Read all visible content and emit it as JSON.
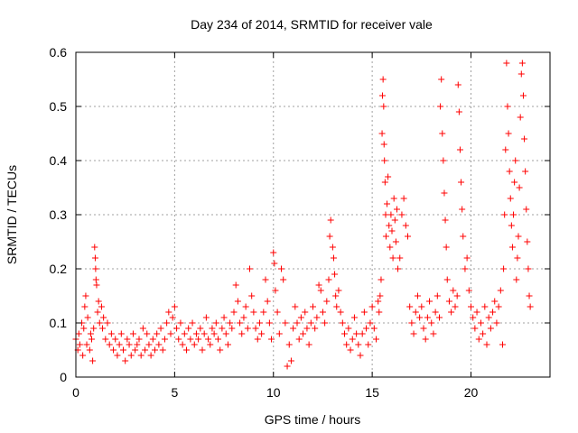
{
  "chart_data": {
    "type": "scatter",
    "title": "Day 234 of 2014, SRMTID for receiver vale",
    "xlabel": "GPS time / hours",
    "ylabel": "SRMTID / TECUs",
    "xlim": [
      0,
      24
    ],
    "ylim": [
      0,
      0.6
    ],
    "xticks": [
      0,
      5,
      10,
      15,
      20
    ],
    "xtick_labels": [
      "0",
      "5",
      "10",
      "15",
      "20"
    ],
    "yticks": [
      0,
      0.1,
      0.2,
      0.3,
      0.4,
      0.5,
      0.6
    ],
    "ytick_labels": [
      "0",
      "0.1",
      "0.2",
      "0.3",
      "0.4",
      "0.5",
      "0.6"
    ],
    "grid": true,
    "marker": "+",
    "color": "#ff0000",
    "series": [
      {
        "name": "SRMTID",
        "points": [
          [
            0.0,
            0.07
          ],
          [
            0.1,
            0.05
          ],
          [
            0.15,
            0.08
          ],
          [
            0.2,
            0.06
          ],
          [
            0.3,
            0.1
          ],
          [
            0.35,
            0.04
          ],
          [
            0.4,
            0.09
          ],
          [
            0.45,
            0.13
          ],
          [
            0.5,
            0.15
          ],
          [
            0.55,
            0.06
          ],
          [
            0.6,
            0.11
          ],
          [
            0.7,
            0.05
          ],
          [
            0.75,
            0.08
          ],
          [
            0.8,
            0.07
          ],
          [
            0.85,
            0.03
          ],
          [
            0.9,
            0.09
          ],
          [
            0.95,
            0.24
          ],
          [
            0.98,
            0.22
          ],
          [
            1.0,
            0.2
          ],
          [
            1.02,
            0.18
          ],
          [
            1.05,
            0.17
          ],
          [
            1.1,
            0.12
          ],
          [
            1.15,
            0.14
          ],
          [
            1.2,
            0.1
          ],
          [
            1.3,
            0.13
          ],
          [
            1.35,
            0.09
          ],
          [
            1.4,
            0.11
          ],
          [
            1.5,
            0.07
          ],
          [
            1.6,
            0.1
          ],
          [
            1.7,
            0.06
          ],
          [
            1.8,
            0.08
          ],
          [
            1.9,
            0.05
          ],
          [
            2.0,
            0.07
          ],
          [
            2.1,
            0.04
          ],
          [
            2.2,
            0.06
          ],
          [
            2.3,
            0.08
          ],
          [
            2.4,
            0.05
          ],
          [
            2.5,
            0.03
          ],
          [
            2.6,
            0.07
          ],
          [
            2.7,
            0.06
          ],
          [
            2.8,
            0.04
          ],
          [
            2.9,
            0.08
          ],
          [
            3.0,
            0.05
          ],
          [
            3.1,
            0.06
          ],
          [
            3.2,
            0.07
          ],
          [
            3.3,
            0.04
          ],
          [
            3.4,
            0.09
          ],
          [
            3.5,
            0.05
          ],
          [
            3.6,
            0.08
          ],
          [
            3.7,
            0.06
          ],
          [
            3.8,
            0.04
          ],
          [
            3.9,
            0.07
          ],
          [
            4.0,
            0.05
          ],
          [
            4.1,
            0.08
          ],
          [
            4.2,
            0.06
          ],
          [
            4.3,
            0.09
          ],
          [
            4.4,
            0.05
          ],
          [
            4.5,
            0.07
          ],
          [
            4.6,
            0.1
          ],
          [
            4.7,
            0.12
          ],
          [
            4.8,
            0.08
          ],
          [
            4.9,
            0.11
          ],
          [
            5.0,
            0.13
          ],
          [
            5.1,
            0.09
          ],
          [
            5.2,
            0.07
          ],
          [
            5.3,
            0.1
          ],
          [
            5.4,
            0.06
          ],
          [
            5.5,
            0.08
          ],
          [
            5.6,
            0.05
          ],
          [
            5.7,
            0.09
          ],
          [
            5.8,
            0.07
          ],
          [
            5.9,
            0.1
          ],
          [
            6.0,
            0.06
          ],
          [
            6.1,
            0.08
          ],
          [
            6.2,
            0.07
          ],
          [
            6.3,
            0.09
          ],
          [
            6.4,
            0.05
          ],
          [
            6.5,
            0.08
          ],
          [
            6.6,
            0.11
          ],
          [
            6.7,
            0.07
          ],
          [
            6.8,
            0.06
          ],
          [
            6.9,
            0.09
          ],
          [
            7.0,
            0.08
          ],
          [
            7.1,
            0.1
          ],
          [
            7.2,
            0.07
          ],
          [
            7.3,
            0.05
          ],
          [
            7.4,
            0.09
          ],
          [
            7.5,
            0.11
          ],
          [
            7.6,
            0.08
          ],
          [
            7.7,
            0.06
          ],
          [
            7.8,
            0.1
          ],
          [
            7.9,
            0.09
          ],
          [
            8.0,
            0.12
          ],
          [
            8.1,
            0.17
          ],
          [
            8.2,
            0.14
          ],
          [
            8.3,
            0.1
          ],
          [
            8.4,
            0.08
          ],
          [
            8.5,
            0.11
          ],
          [
            8.6,
            0.13
          ],
          [
            8.7,
            0.09
          ],
          [
            8.8,
            0.2
          ],
          [
            8.9,
            0.15
          ],
          [
            9.0,
            0.12
          ],
          [
            9.1,
            0.09
          ],
          [
            9.2,
            0.07
          ],
          [
            9.3,
            0.1
          ],
          [
            9.4,
            0.08
          ],
          [
            9.5,
            0.12
          ],
          [
            9.6,
            0.18
          ],
          [
            9.7,
            0.14
          ],
          [
            9.8,
            0.1
          ],
          [
            9.9,
            0.07
          ],
          [
            10.0,
            0.23
          ],
          [
            10.05,
            0.21
          ],
          [
            10.1,
            0.16
          ],
          [
            10.2,
            0.12
          ],
          [
            10.3,
            0.08
          ],
          [
            10.4,
            0.2
          ],
          [
            10.5,
            0.18
          ],
          [
            10.6,
            0.1
          ],
          [
            10.7,
            0.02
          ],
          [
            10.8,
            0.06
          ],
          [
            10.9,
            0.03
          ],
          [
            11.0,
            0.09
          ],
          [
            11.1,
            0.13
          ],
          [
            11.2,
            0.1
          ],
          [
            11.3,
            0.07
          ],
          [
            11.4,
            0.11
          ],
          [
            11.5,
            0.08
          ],
          [
            11.6,
            0.12
          ],
          [
            11.7,
            0.09
          ],
          [
            11.8,
            0.06
          ],
          [
            11.9,
            0.1
          ],
          [
            12.0,
            0.13
          ],
          [
            12.1,
            0.09
          ],
          [
            12.2,
            0.11
          ],
          [
            12.3,
            0.17
          ],
          [
            12.4,
            0.16
          ],
          [
            12.5,
            0.12
          ],
          [
            12.6,
            0.1
          ],
          [
            12.7,
            0.14
          ],
          [
            12.8,
            0.18
          ],
          [
            12.85,
            0.26
          ],
          [
            12.9,
            0.29
          ],
          [
            13.0,
            0.24
          ],
          [
            13.05,
            0.22
          ],
          [
            13.1,
            0.19
          ],
          [
            13.15,
            0.15
          ],
          [
            13.2,
            0.13
          ],
          [
            13.3,
            0.16
          ],
          [
            13.4,
            0.12
          ],
          [
            13.5,
            0.1
          ],
          [
            13.6,
            0.08
          ],
          [
            13.7,
            0.06
          ],
          [
            13.8,
            0.09
          ],
          [
            13.9,
            0.05
          ],
          [
            14.0,
            0.07
          ],
          [
            14.1,
            0.11
          ],
          [
            14.2,
            0.08
          ],
          [
            14.3,
            0.06
          ],
          [
            14.4,
            0.04
          ],
          [
            14.5,
            0.08
          ],
          [
            14.6,
            0.12
          ],
          [
            14.7,
            0.09
          ],
          [
            14.8,
            0.06
          ],
          [
            14.9,
            0.1
          ],
          [
            15.0,
            0.13
          ],
          [
            15.1,
            0.09
          ],
          [
            15.2,
            0.07
          ],
          [
            15.3,
            0.14
          ],
          [
            15.35,
            0.12
          ],
          [
            15.4,
            0.15
          ],
          [
            15.45,
            0.18
          ],
          [
            15.5,
            0.45
          ],
          [
            15.52,
            0.52
          ],
          [
            15.55,
            0.55
          ],
          [
            15.58,
            0.5
          ],
          [
            15.6,
            0.43
          ],
          [
            15.62,
            0.4
          ],
          [
            15.65,
            0.36
          ],
          [
            15.68,
            0.3
          ],
          [
            15.7,
            0.26
          ],
          [
            15.75,
            0.32
          ],
          [
            15.8,
            0.37
          ],
          [
            15.85,
            0.28
          ],
          [
            15.9,
            0.24
          ],
          [
            15.95,
            0.3
          ],
          [
            16.0,
            0.27
          ],
          [
            16.05,
            0.22
          ],
          [
            16.1,
            0.33
          ],
          [
            16.15,
            0.29
          ],
          [
            16.2,
            0.25
          ],
          [
            16.25,
            0.31
          ],
          [
            16.3,
            0.2
          ],
          [
            16.4,
            0.22
          ],
          [
            16.5,
            0.3
          ],
          [
            16.6,
            0.33
          ],
          [
            16.7,
            0.28
          ],
          [
            16.8,
            0.26
          ],
          [
            16.9,
            0.13
          ],
          [
            17.0,
            0.1
          ],
          [
            17.1,
            0.08
          ],
          [
            17.2,
            0.12
          ],
          [
            17.3,
            0.15
          ],
          [
            17.4,
            0.11
          ],
          [
            17.5,
            0.13
          ],
          [
            17.6,
            0.09
          ],
          [
            17.7,
            0.07
          ],
          [
            17.8,
            0.11
          ],
          [
            17.9,
            0.14
          ],
          [
            18.0,
            0.1
          ],
          [
            18.1,
            0.08
          ],
          [
            18.2,
            0.12
          ],
          [
            18.3,
            0.15
          ],
          [
            18.4,
            0.11
          ],
          [
            18.45,
            0.5
          ],
          [
            18.5,
            0.55
          ],
          [
            18.55,
            0.45
          ],
          [
            18.6,
            0.4
          ],
          [
            18.65,
            0.34
          ],
          [
            18.7,
            0.29
          ],
          [
            18.75,
            0.24
          ],
          [
            18.8,
            0.18
          ],
          [
            18.9,
            0.14
          ],
          [
            19.0,
            0.12
          ],
          [
            19.1,
            0.16
          ],
          [
            19.2,
            0.13
          ],
          [
            19.3,
            0.15
          ],
          [
            19.35,
            0.54
          ],
          [
            19.4,
            0.49
          ],
          [
            19.45,
            0.42
          ],
          [
            19.5,
            0.36
          ],
          [
            19.55,
            0.31
          ],
          [
            19.6,
            0.26
          ],
          [
            19.7,
            0.2
          ],
          [
            19.8,
            0.22
          ],
          [
            19.9,
            0.16
          ],
          [
            20.0,
            0.13
          ],
          [
            20.1,
            0.11
          ],
          [
            20.2,
            0.09
          ],
          [
            20.3,
            0.12
          ],
          [
            20.4,
            0.07
          ],
          [
            20.5,
            0.1
          ],
          [
            20.6,
            0.08
          ],
          [
            20.7,
            0.13
          ],
          [
            20.8,
            0.06
          ],
          [
            20.9,
            0.11
          ],
          [
            21.0,
            0.09
          ],
          [
            21.1,
            0.12
          ],
          [
            21.2,
            0.14
          ],
          [
            21.3,
            0.1
          ],
          [
            21.4,
            0.13
          ],
          [
            21.5,
            0.16
          ],
          [
            21.6,
            0.06
          ],
          [
            21.65,
            0.2
          ],
          [
            21.7,
            0.3
          ],
          [
            21.75,
            0.42
          ],
          [
            21.8,
            0.58
          ],
          [
            21.85,
            0.5
          ],
          [
            21.9,
            0.45
          ],
          [
            21.95,
            0.38
          ],
          [
            22.0,
            0.33
          ],
          [
            22.05,
            0.28
          ],
          [
            22.1,
            0.24
          ],
          [
            22.15,
            0.3
          ],
          [
            22.2,
            0.36
          ],
          [
            22.25,
            0.4
          ],
          [
            22.3,
            0.18
          ],
          [
            22.35,
            0.22
          ],
          [
            22.4,
            0.26
          ],
          [
            22.45,
            0.35
          ],
          [
            22.5,
            0.48
          ],
          [
            22.55,
            0.56
          ],
          [
            22.6,
            0.58
          ],
          [
            22.65,
            0.52
          ],
          [
            22.7,
            0.44
          ],
          [
            22.75,
            0.38
          ],
          [
            22.8,
            0.31
          ],
          [
            22.85,
            0.25
          ],
          [
            22.9,
            0.2
          ],
          [
            22.95,
            0.15
          ],
          [
            23.0,
            0.13
          ]
        ]
      }
    ]
  }
}
